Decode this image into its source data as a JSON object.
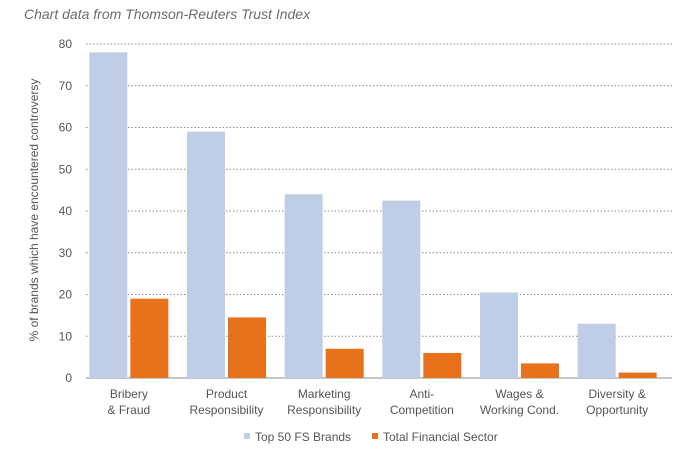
{
  "title": "Chart data from Thomson-Reuters Trust Index",
  "colors": {
    "series1": "#bfcde6",
    "series2": "#e8711c",
    "grid": "#8c8c8c",
    "text": "#555555"
  },
  "chart_data": {
    "type": "bar",
    "title": "Chart data from Thomson-Reuters Trust Index",
    "ylabel": "% of brands which have encountered controversy",
    "xlabel": "",
    "ylim": [
      0,
      80
    ],
    "yticks": [
      0,
      10,
      20,
      30,
      40,
      50,
      60,
      70,
      80
    ],
    "grid": true,
    "legend_position": "bottom",
    "categories": [
      [
        "Bribery",
        "& Fraud"
      ],
      [
        "Product",
        "Responsibility"
      ],
      [
        "Marketing",
        "Responsibility"
      ],
      [
        "Anti-",
        "Competition"
      ],
      [
        "Wages &",
        "Working Cond."
      ],
      [
        "Diversity &",
        "Opportunity"
      ]
    ],
    "series": [
      {
        "name": "Top 50 FS Brands",
        "values": [
          78,
          59,
          44,
          42.5,
          20.5,
          13
        ]
      },
      {
        "name": "Total Financial Sector",
        "values": [
          19,
          14.5,
          7,
          6,
          3.5,
          1.3
        ]
      }
    ]
  }
}
